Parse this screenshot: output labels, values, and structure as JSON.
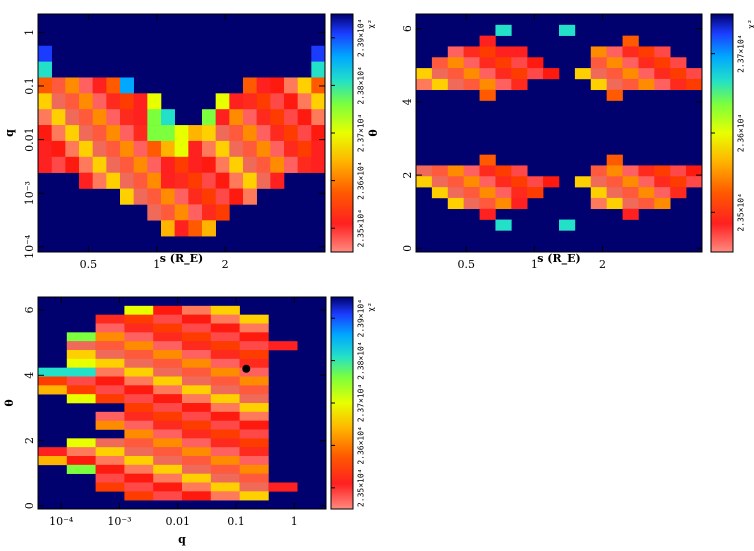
{
  "chart_data": [
    {
      "type": "heatmap",
      "name": "s-q",
      "xlabel": "s (R_E)",
      "ylabel": "q",
      "x_scale": "log",
      "y_scale": "log",
      "xlim": [
        0.3,
        5.5
      ],
      "ylim": [
        8e-05,
        2.2
      ],
      "x_ticks": [
        {
          "value": 0.5,
          "label": "0.5"
        },
        {
          "value": 1,
          "label": "1"
        },
        {
          "value": 2,
          "label": "2"
        }
      ],
      "y_ticks": [
        {
          "value": 0.0001,
          "label": "10⁻⁴"
        },
        {
          "value": 0.001,
          "label": "10⁻³"
        },
        {
          "value": 0.01,
          "label": "0.01"
        },
        {
          "value": 0.1,
          "label": "0.1"
        },
        {
          "value": 1,
          "label": "1"
        }
      ],
      "colorbar": {
        "label": "χ²",
        "ticks": [
          "2.35×10⁴",
          "2.36×10⁴",
          "2.37×10⁴",
          "2.38×10⁴",
          "2.39×10⁴"
        ]
      },
      "grid": {
        "rows": 15,
        "cols": 21,
        "values": [
          "000000000000000000000",
          "000000000000000000000",
          "100000000000000000001",
          "300000000000000000003",
          "799987200000000789997",
          "999999985000058999999",
          "999999984300489999999",
          "999999994456999999999",
          "899999997658999999998",
          "899999999898999999998",
          "000899999899999998000",
          "000000999999999900000",
          "000000009999990000000",
          "000000000687600000000",
          "000000000000000000000"
        ]
      }
    },
    {
      "type": "heatmap",
      "name": "s-theta",
      "xlabel": "s (R_E)",
      "ylabel": "θ",
      "x_scale": "log",
      "y_scale": "linear",
      "xlim": [
        0.3,
        5.5
      ],
      "ylim": [
        -0.1,
        6.4
      ],
      "x_ticks": [
        {
          "value": 0.5,
          "label": "0.5"
        },
        {
          "value": 1,
          "label": "1"
        },
        {
          "value": 2,
          "label": "2"
        }
      ],
      "y_ticks": [
        {
          "value": 0,
          "label": "0"
        },
        {
          "value": 2,
          "label": "2"
        },
        {
          "value": 4,
          "label": "4"
        },
        {
          "value": 6,
          "label": "6"
        }
      ],
      "colorbar": {
        "label": "χ²",
        "ticks": [
          "2.35×10⁴",
          "2.36×10⁴",
          "2.37×10⁴"
        ]
      },
      "grid": {
        "rows": 22,
        "cols": 18,
        "values": [
          "000000000000000000",
          "000003000300000000",
          "000080000000070000",
          "009998800009999900",
          "099999990009999990",
          "999999999099999999",
          "999999900009999999",
          "000070000000700000",
          "000000000000000000",
          "000000000000000000",
          "000000000000000000",
          "000000000000000000",
          "000000000000000000",
          "000070000000700000",
          "999999900009999999",
          "999999999099999999",
          "099999990009999990",
          "009999800009999900",
          "000080000000080000",
          "000003000300000000",
          "000000000000000000",
          "000000000000000000"
        ]
      }
    },
    {
      "type": "heatmap",
      "name": "q-theta",
      "xlabel": "q",
      "ylabel": "θ",
      "x_scale": "log",
      "y_scale": "linear",
      "xlim": [
        4e-05,
        3.5
      ],
      "ylim": [
        -0.1,
        6.4
      ],
      "x_ticks": [
        {
          "value": 0.0001,
          "label": "10⁻⁴"
        },
        {
          "value": 0.001,
          "label": "10⁻³"
        },
        {
          "value": 0.01,
          "label": "0.01"
        },
        {
          "value": 0.1,
          "label": "0.1"
        },
        {
          "value": 1,
          "label": "1"
        }
      ],
      "y_ticks": [
        {
          "value": 0,
          "label": "0"
        },
        {
          "value": 2,
          "label": "2"
        },
        {
          "value": 4,
          "label": "4"
        },
        {
          "value": 6,
          "label": "6"
        }
      ],
      "marker": {
        "q": 0.15,
        "theta": 4.2
      },
      "colorbar": {
        "label": "χ²",
        "ticks": [
          "2.35×10⁴",
          "2.36×10⁴",
          "2.37×10⁴",
          "2.38×10⁴",
          "2.39×10⁴"
        ]
      },
      "grid": {
        "rows": 24,
        "cols": 10,
        "values": [
          "0000000000",
          "0005999000",
          "0099999900",
          "0099999900",
          "0499999900",
          "0999999980",
          "0999999900",
          "0599999900",
          "3399999900",
          "9999999900",
          "6999999900",
          "0599999900",
          "0009999900",
          "0099999900",
          "0099999900",
          "0009999900",
          "0599999900",
          "8999999900",
          "6999999900",
          "0499999900",
          "0099999900",
          "0099999980",
          "0009999900",
          "0000000000"
        ]
      }
    }
  ]
}
